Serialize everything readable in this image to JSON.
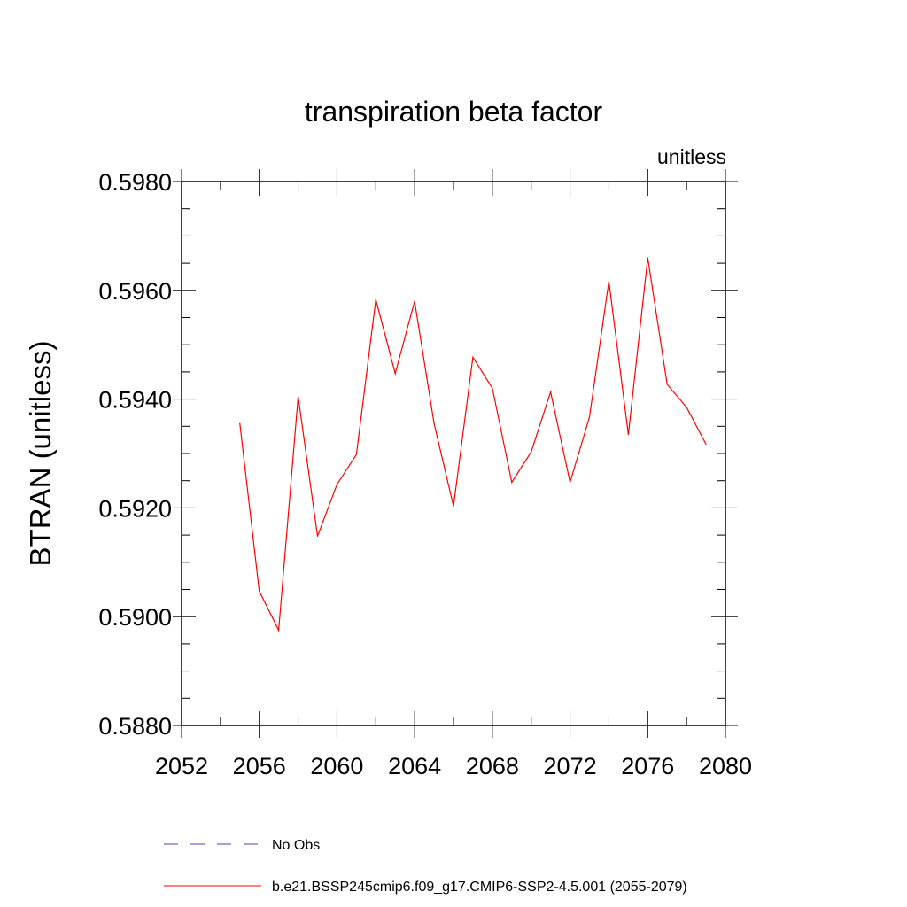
{
  "chart_data": {
    "type": "line",
    "title": "transpiration beta factor",
    "units_label": "unitless",
    "xlabel": "",
    "ylabel": "BTRAN  (unitless)",
    "xlim": [
      2052,
      2080
    ],
    "ylim": [
      0.588,
      0.598
    ],
    "x_ticks": [
      2052,
      2056,
      2060,
      2064,
      2068,
      2072,
      2076,
      2080
    ],
    "x_tick_labels": [
      "2052",
      "2056",
      "2060",
      "2064",
      "2068",
      "2072",
      "2076",
      "2080"
    ],
    "y_ticks": [
      0.588,
      0.59,
      0.592,
      0.594,
      0.596,
      0.598
    ],
    "y_tick_labels": [
      "0.5880",
      "0.5900",
      "0.5920",
      "0.5940",
      "0.5960",
      "0.5980"
    ],
    "grid": false,
    "legend_position": "bottom",
    "series": [
      {
        "name": "No Obs",
        "color": "#4b3fb8",
        "dash": "dashed",
        "x": [],
        "y": []
      },
      {
        "name": "b.e21.BSSP245cmip6.f09_g17.CMIP6-SSP2-4.5.001 (2055-2079)",
        "color": "#ff0000",
        "dash": "solid",
        "x": [
          2055,
          2056,
          2057,
          2058,
          2059,
          2060,
          2061,
          2062,
          2063,
          2064,
          2065,
          2066,
          2067,
          2068,
          2069,
          2070,
          2071,
          2072,
          2073,
          2074,
          2075,
          2076,
          2077,
          2078,
          2079
        ],
        "y": [
          0.59355,
          0.59047,
          0.58975,
          0.59405,
          0.59148,
          0.59243,
          0.59298,
          0.59583,
          0.59447,
          0.5958,
          0.59355,
          0.59203,
          0.59477,
          0.5942,
          0.59247,
          0.59303,
          0.59413,
          0.59247,
          0.59367,
          0.59617,
          0.59335,
          0.5966,
          0.59427,
          0.59385,
          0.59317
        ]
      }
    ]
  }
}
